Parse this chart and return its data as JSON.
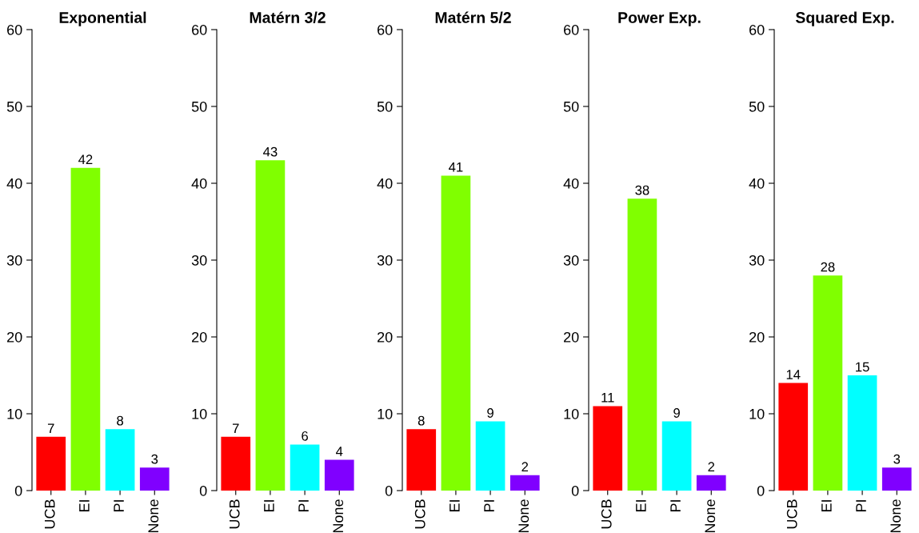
{
  "chart_data": [
    {
      "type": "bar",
      "title": "Exponential",
      "categories": [
        "UCB",
        "EI",
        "PI",
        "None"
      ],
      "values": [
        7,
        42,
        8,
        3
      ],
      "colors": [
        "#ff0000",
        "#80ff00",
        "#00ffff",
        "#8000ff"
      ],
      "ylim": [
        0,
        60
      ],
      "yticks": [
        0,
        10,
        20,
        30,
        40,
        50,
        60
      ],
      "data_labels": true,
      "grid": false,
      "legend": false
    },
    {
      "type": "bar",
      "title": "Matérn 3/2",
      "categories": [
        "UCB",
        "EI",
        "PI",
        "None"
      ],
      "values": [
        7,
        43,
        6,
        4
      ],
      "colors": [
        "#ff0000",
        "#80ff00",
        "#00ffff",
        "#8000ff"
      ],
      "ylim": [
        0,
        60
      ],
      "yticks": [
        0,
        10,
        20,
        30,
        40,
        50,
        60
      ],
      "data_labels": true,
      "grid": false,
      "legend": false
    },
    {
      "type": "bar",
      "title": "Matérn 5/2",
      "categories": [
        "UCB",
        "EI",
        "PI",
        "None"
      ],
      "values": [
        8,
        41,
        9,
        2
      ],
      "colors": [
        "#ff0000",
        "#80ff00",
        "#00ffff",
        "#8000ff"
      ],
      "ylim": [
        0,
        60
      ],
      "yticks": [
        0,
        10,
        20,
        30,
        40,
        50,
        60
      ],
      "data_labels": true,
      "grid": false,
      "legend": false
    },
    {
      "type": "bar",
      "title": "Power Exp.",
      "categories": [
        "UCB",
        "EI",
        "PI",
        "None"
      ],
      "values": [
        11,
        38,
        9,
        2
      ],
      "colors": [
        "#ff0000",
        "#80ff00",
        "#00ffff",
        "#8000ff"
      ],
      "ylim": [
        0,
        60
      ],
      "yticks": [
        0,
        10,
        20,
        30,
        40,
        50,
        60
      ],
      "data_labels": true,
      "grid": false,
      "legend": false
    },
    {
      "type": "bar",
      "title": "Squared Exp.",
      "categories": [
        "UCB",
        "EI",
        "PI",
        "None"
      ],
      "values": [
        14,
        28,
        15,
        3
      ],
      "colors": [
        "#ff0000",
        "#80ff00",
        "#00ffff",
        "#8000ff"
      ],
      "ylim": [
        0,
        60
      ],
      "yticks": [
        0,
        10,
        20,
        30,
        40,
        50,
        60
      ],
      "data_labels": true,
      "grid": false,
      "legend": false
    }
  ]
}
